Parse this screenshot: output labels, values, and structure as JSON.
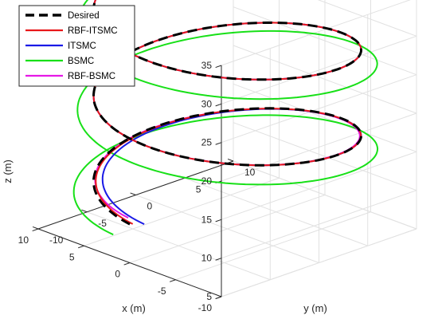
{
  "chart_data": {
    "type": "line",
    "projection": "3d",
    "title": "",
    "xlabel": "x (m)",
    "ylabel": "y (m)",
    "zlabel": "z (m)",
    "xlim": [
      -10,
      10
    ],
    "ylim": [
      -10,
      10
    ],
    "zlim": [
      5,
      35
    ],
    "xticks": [
      "-10",
      "-5",
      "0",
      "5",
      "10"
    ],
    "yticks": [
      "-10",
      "-5",
      "0",
      "5",
      "10"
    ],
    "zticks": [
      "5",
      "10",
      "15",
      "20",
      "25",
      "30",
      "35"
    ],
    "grid": true,
    "legend_position": "top-left",
    "series": [
      {
        "name": "Desired",
        "color": "#000000",
        "style": "dashed",
        "radius": 10,
        "z_start": 10,
        "z_end": 35,
        "turns": 2.25,
        "theta_start_deg": -90
      },
      {
        "name": "RBF-ITSMC",
        "color": "#e8181b",
        "style": "solid"
      },
      {
        "name": "ITSMC",
        "color": "#1a1ae6",
        "style": "solid"
      },
      {
        "name": "BSMC",
        "color": "#18e018",
        "style": "solid"
      },
      {
        "name": "RBF-BSMC",
        "color": "#e619e6",
        "style": "solid"
      }
    ]
  }
}
